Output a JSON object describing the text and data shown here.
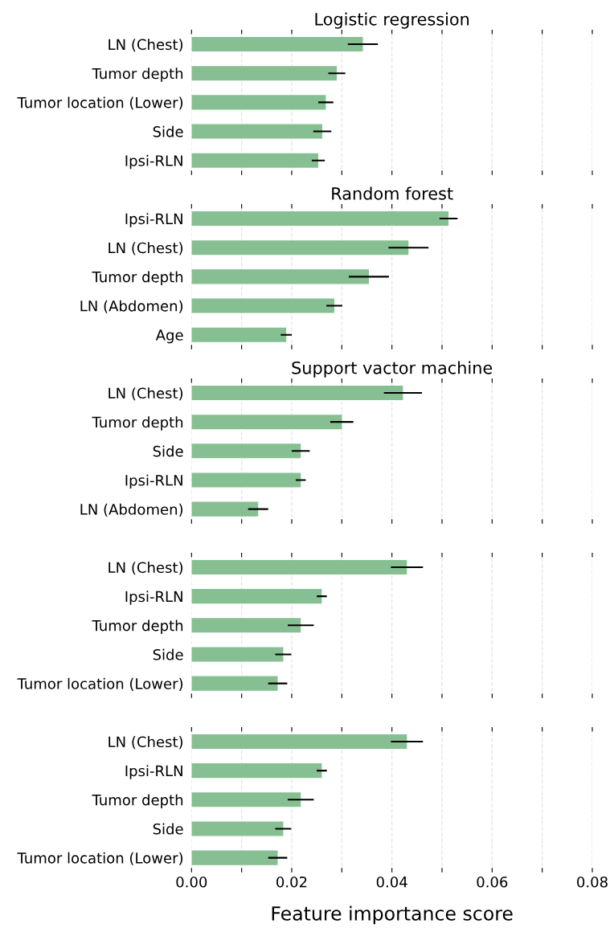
{
  "chart_data": [
    {
      "type": "bar",
      "orientation": "horizontal",
      "title": "Logistic regression",
      "categories": [
        "LN (Chest)",
        "Tumor depth",
        "Tumor location (Lower)",
        "Side",
        "Ipsi-RLN"
      ],
      "values": [
        0.0342,
        0.029,
        0.0268,
        0.0261,
        0.0253
      ],
      "errors": [
        0.003,
        0.0017,
        0.0015,
        0.0018,
        0.0013
      ],
      "color": "#86bf91",
      "xlim": [
        0,
        0.08
      ],
      "xticks": [
        0,
        0.01,
        0.02,
        0.03,
        0.04,
        0.05,
        0.06,
        0.07,
        0.08
      ],
      "tick_labels": "y",
      "grid": "x"
    },
    {
      "type": "bar",
      "orientation": "horizontal",
      "title": "Random forest",
      "categories": [
        "Ipsi-RLN",
        "LN (Chest)",
        "Tumor depth",
        "LN (Abdomen)",
        "Age"
      ],
      "values": [
        0.0513,
        0.0433,
        0.0354,
        0.0285,
        0.0189
      ],
      "errors": [
        0.0018,
        0.004,
        0.004,
        0.0016,
        0.0011
      ],
      "color": "#86bf91",
      "xlim": [
        0,
        0.08
      ],
      "xticks": [
        0,
        0.01,
        0.02,
        0.03,
        0.04,
        0.05,
        0.06,
        0.07,
        0.08
      ],
      "tick_labels": "y",
      "grid": "x"
    },
    {
      "type": "bar",
      "orientation": "horizontal",
      "title": "Support vactor machine",
      "categories": [
        "LN (Chest)",
        "Tumor depth",
        "Side",
        "Ipsi-RLN",
        "LN (Abdomen)"
      ],
      "values": [
        0.0422,
        0.03,
        0.0218,
        0.0218,
        0.0133
      ],
      "errors": [
        0.0038,
        0.0023,
        0.0018,
        0.001,
        0.002
      ],
      "color": "#86bf91",
      "xlim": [
        0,
        0.08
      ],
      "xticks": [
        0,
        0.01,
        0.02,
        0.03,
        0.04,
        0.05,
        0.06,
        0.07,
        0.08
      ],
      "tick_labels": "y",
      "grid": "x"
    },
    {
      "type": "bar",
      "orientation": "horizontal",
      "categories": [
        "LN (Chest)",
        "Ipsi-RLN",
        "Tumor depth",
        "Side",
        "Tumor location (Lower)"
      ],
      "values": [
        0.043,
        0.026,
        0.0218,
        0.0183,
        0.0172
      ],
      "errors": [
        0.0032,
        0.001,
        0.0026,
        0.0016,
        0.0019
      ],
      "color": "#86bf91",
      "xlim": [
        0,
        0.08
      ],
      "xticks": [
        0,
        0.01,
        0.02,
        0.03,
        0.04,
        0.05,
        0.06,
        0.07,
        0.08
      ],
      "tick_labels": "y",
      "grid": "x"
    },
    {
      "type": "bar",
      "orientation": "horizontal",
      "categories": [
        "LN (Chest)",
        "Ipsi-RLN",
        "Tumor depth",
        "Side",
        "Tumor location (Lower)"
      ],
      "values": [
        0.043,
        0.026,
        0.0218,
        0.0183,
        0.0172
      ],
      "errors": [
        0.0032,
        0.001,
        0.0026,
        0.0016,
        0.0019
      ],
      "color": "#86bf91",
      "xlim": [
        0,
        0.08
      ],
      "xticks": [
        {
          "value": 0,
          "label": "0.00"
        },
        {
          "value": 0.01,
          "label": null
        },
        {
          "value": 0.02,
          "label": "0.02"
        },
        {
          "value": 0.03,
          "label": null
        },
        {
          "value": 0.04,
          "label": "0.04"
        },
        {
          "value": 0.05,
          "label": null
        },
        {
          "value": 0.06,
          "label": "0.06"
        },
        {
          "value": 0.07,
          "label": null
        },
        {
          "value": 0.08,
          "label": "0.08"
        }
      ],
      "xlabel": "Feature importance score",
      "grid": "x"
    }
  ]
}
